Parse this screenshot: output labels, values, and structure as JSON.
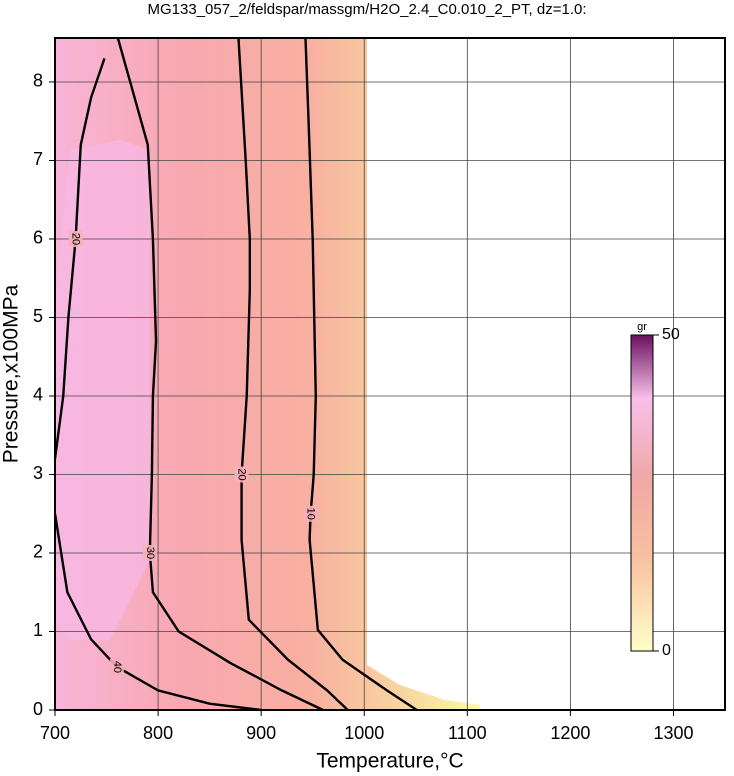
{
  "chart_data": {
    "type": "contour",
    "title": "MG133_057_2/feldspar/massgm/H2O_2.4_C0.010_2_PT, dz=1.0:",
    "x_label": "Temperature,°C",
    "y_label": "Pressure,x100MPa",
    "xlim": [
      700,
      1350
    ],
    "ylim": [
      0,
      8.56
    ],
    "xticks": [
      700,
      800,
      900,
      1000,
      1100,
      1200,
      1300
    ],
    "yticks": [
      0,
      1,
      2,
      3,
      4,
      5,
      6,
      7,
      8
    ],
    "grid": true,
    "contours": [
      {
        "level": 10,
        "x": [
          943,
          946,
          950,
          953,
          951,
          948,
          947,
          955,
          979,
          1022,
          1051
        ],
        "y": [
          8.56,
          7.5,
          6,
          4,
          3,
          2.5,
          2.17,
          1.02,
          0.64,
          0.25,
          0
        ]
      },
      {
        "level": 20,
        "x": [
          878,
          885,
          889,
          889,
          886,
          881,
          881,
          888,
          926,
          964,
          984
        ],
        "y": [
          8.56,
          7,
          6,
          5.35,
          4,
          3,
          2.17,
          1.15,
          0.64,
          0.25,
          0
        ]
      },
      {
        "level": 30,
        "x": [
          761,
          790,
          795,
          798,
          795,
          794,
          792,
          795,
          820,
          870,
          920,
          960
        ],
        "y": [
          8.56,
          7.2,
          6,
          4.7,
          4,
          3,
          2,
          1.5,
          1,
          0.6,
          0.25,
          0
        ]
      },
      {
        "level": 20,
        "x": [
          700,
          708,
          713,
          720,
          725,
          735,
          748
        ],
        "y": [
          3.2,
          4,
          5,
          6,
          7.2,
          7.8,
          8.3
        ]
      },
      {
        "level": 40,
        "x": [
          700,
          712,
          735,
          760,
          800,
          850,
          900
        ],
        "y": [
          2.5,
          1.5,
          0.9,
          0.55,
          0.25,
          0.08,
          0
        ]
      }
    ],
    "colorbar": {
      "label": "gr",
      "clim": [
        0,
        50
      ],
      "ticks": [
        0,
        50
      ]
    }
  }
}
